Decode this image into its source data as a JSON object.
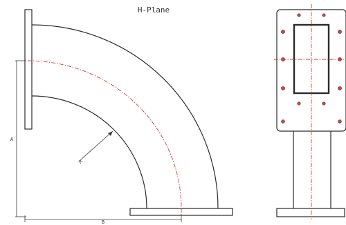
{
  "title": "H-Plane",
  "dimensions": {
    "vertical_label": "A",
    "horizontal_label": "B",
    "radius_label": "R"
  },
  "colors": {
    "outline": "#2a2a2a",
    "centerline": "#d23b3b",
    "bolt_hole": "#c8474a",
    "flange_fill": "#f4f4f4",
    "aperture_fill": "#ffffff"
  }
}
